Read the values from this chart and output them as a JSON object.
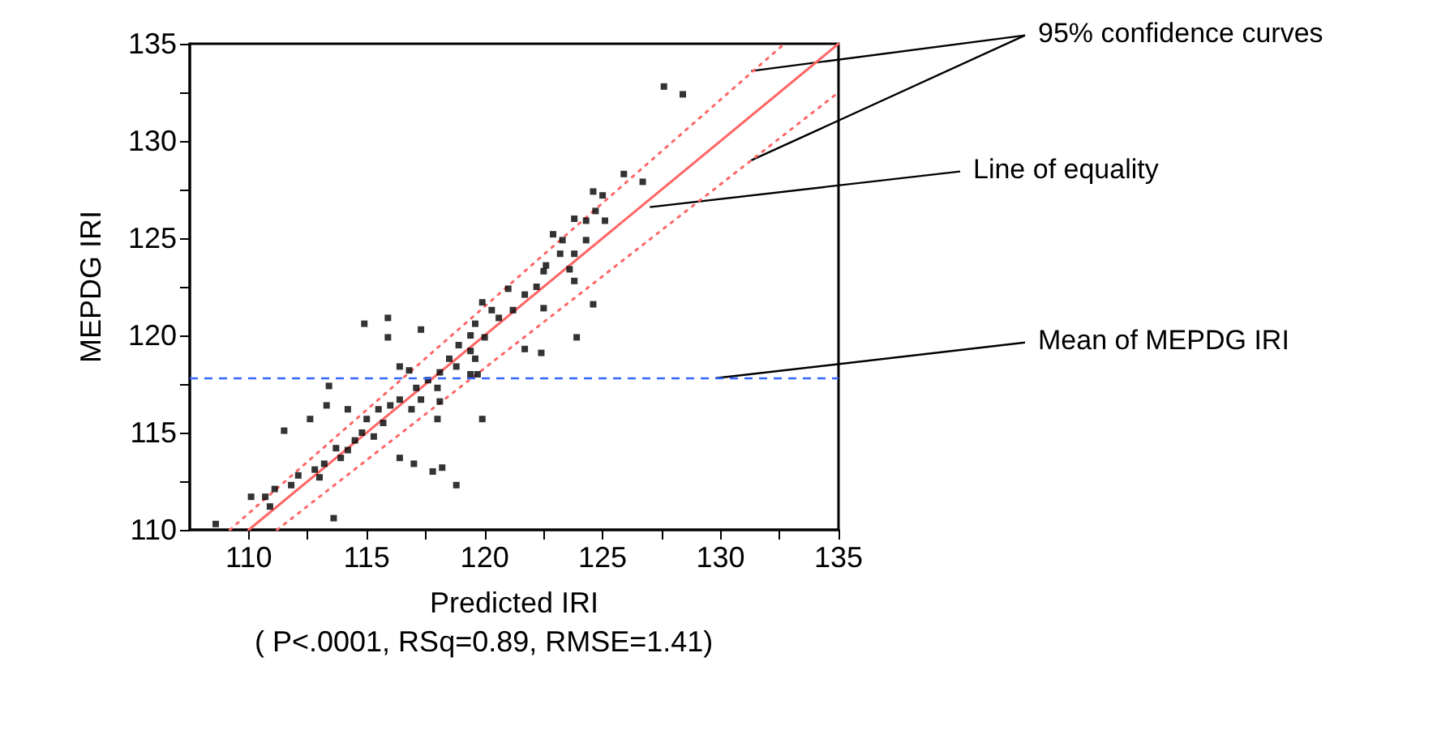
{
  "chart_data": {
    "type": "scatter",
    "xlabel": "Predicted IRI",
    "ylabel": "MEPDG IRI",
    "xlim": [
      107.5,
      135
    ],
    "ylim": [
      110,
      135
    ],
    "xticks": [
      110,
      {
        "value": 112.5,
        "label": null
      },
      115,
      {
        "value": 117.5,
        "label": null
      },
      120,
      {
        "value": 122.5,
        "label": null
      },
      125,
      {
        "value": 127.5,
        "label": null
      },
      130,
      {
        "value": 132.5,
        "label": null
      },
      135
    ],
    "yticks": [
      110,
      {
        "value": 112.5,
        "label": null
      },
      115,
      {
        "value": 117.5,
        "label": null
      },
      120,
      {
        "value": 122.5,
        "label": null
      },
      125,
      {
        "value": 127.5,
        "label": null
      },
      130,
      {
        "value": 132.5,
        "label": null
      },
      135
    ],
    "grid": false,
    "marker": "square",
    "series": [
      {
        "color": "#000000",
        "x": [
          127.6,
          128.4,
          125.9,
          126.7,
          124.6,
          125.0,
          124.7,
          123.8,
          124.3,
          125.1,
          122.9,
          123.3,
          123.2,
          124.3,
          123.8,
          122.6,
          122.5,
          123.6,
          123.8,
          121.0,
          121.7,
          122.2,
          122.5,
          124.6,
          123.9,
          121.7,
          122.4,
          119.9,
          120.3,
          120.6,
          121.2,
          119.6,
          119.4,
          120.0,
          118.9,
          119.4,
          119.6,
          118.5,
          118.8,
          118.1,
          119.4,
          117.6,
          118.0,
          117.1,
          117.3,
          118.1,
          116.4,
          116.0,
          116.9,
          115.5,
          115.0,
          115.7,
          114.8,
          115.3,
          114.5,
          114.2,
          113.7,
          113.9,
          113.2,
          112.8,
          113.0,
          112.1,
          111.8,
          111.1,
          110.7,
          110.1,
          110.9,
          108.6,
          114.9,
          115.9,
          115.9,
          117.3,
          116.4,
          116.8,
          113.4,
          113.3,
          114.2,
          112.6,
          111.5,
          116.4,
          117.0,
          117.8,
          118.2,
          118.8,
          113.6,
          119.9,
          118.0,
          119.7
        ],
        "values": [
          132.8,
          132.4,
          128.3,
          127.9,
          127.4,
          127.2,
          126.4,
          126.0,
          125.9,
          125.9,
          125.2,
          124.9,
          124.2,
          124.9,
          124.2,
          123.6,
          123.3,
          123.4,
          122.8,
          122.4,
          122.1,
          122.5,
          121.4,
          121.6,
          119.9,
          119.3,
          119.1,
          121.7,
          121.3,
          120.9,
          121.3,
          120.6,
          120.0,
          119.9,
          119.5,
          119.2,
          118.8,
          118.8,
          118.4,
          118.1,
          118.0,
          117.7,
          117.3,
          117.3,
          116.7,
          116.6,
          116.7,
          116.4,
          116.2,
          116.2,
          115.7,
          115.5,
          115.0,
          114.8,
          114.6,
          114.1,
          114.2,
          113.7,
          113.4,
          113.1,
          112.7,
          112.8,
          112.3,
          112.1,
          111.7,
          111.7,
          111.2,
          110.3,
          120.6,
          120.9,
          119.9,
          120.3,
          118.4,
          118.2,
          117.4,
          116.4,
          116.2,
          115.7,
          115.1,
          113.7,
          113.4,
          113.0,
          113.2,
          112.3,
          110.6,
          115.7,
          115.7,
          118.0
        ]
      },
      {
        "type": "line",
        "color": "#ff6666",
        "line_style": "solid",
        "marker": "none",
        "x": [
          110,
          135
        ],
        "values": [
          110,
          135
        ]
      },
      {
        "type": "line",
        "color": "#ff6666",
        "line_style": "dotted",
        "marker": "none",
        "x": [
          109.2,
          132.7
        ],
        "values": [
          110,
          135
        ]
      },
      {
        "type": "line",
        "color": "#ff6666",
        "line_style": "dotted",
        "marker": "none",
        "x": [
          111.2,
          135
        ],
        "values": [
          110,
          132.5
        ]
      }
    ],
    "ref_lines": [
      {
        "axis": "y",
        "value": 117.8,
        "color": "#3366ff",
        "line_style": "dashed"
      }
    ],
    "annotations": [
      {
        "text": "95% confidence curves",
        "x": 131.3,
        "y": 133.6
      },
      {
        "text": "Line of equality",
        "x": 127,
        "y": 126.6
      },
      {
        "text": "Mean of MEPDG IRI",
        "x": 129.8,
        "y": 117.8
      },
      "( P<.0001, RSq=0.89, RMSE=1.41)"
    ]
  }
}
